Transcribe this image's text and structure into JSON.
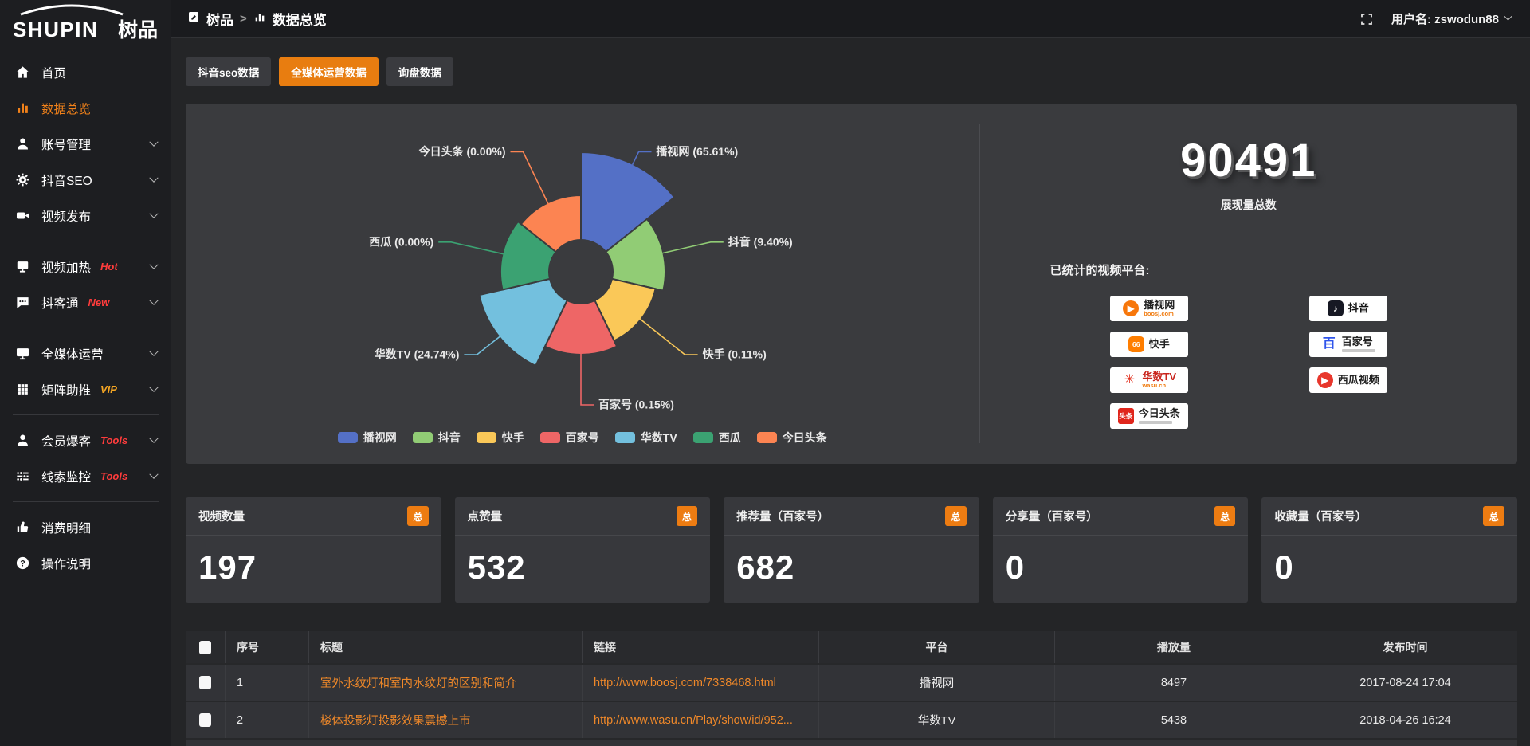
{
  "app": {
    "logo_text": "SHUPIN",
    "logo_cn": "树品"
  },
  "header": {
    "breadcrumb": [
      {
        "id": "shupin",
        "label": "树品",
        "icon": "app-icon"
      },
      {
        "id": "data-overview",
        "label": "数据总览",
        "icon": "bar-chart-icon"
      }
    ],
    "separator": ">",
    "username_label": "用户名: zswodun88"
  },
  "sidebar": {
    "items": [
      {
        "id": "home",
        "label": "首页",
        "icon": "home-icon"
      },
      {
        "id": "data-overview",
        "label": "数据总览",
        "icon": "bar-chart-icon",
        "active": true
      },
      {
        "id": "account-management",
        "label": "账号管理",
        "icon": "user-icon",
        "chevron": true
      },
      {
        "id": "douyin-seo",
        "label": "抖音SEO",
        "icon": "gear-icon",
        "chevron": true
      },
      {
        "id": "video-publish",
        "label": "视频发布",
        "icon": "video-icon",
        "chevron": true
      },
      {
        "divider": true
      },
      {
        "id": "video-heat",
        "label": "视频加热",
        "icon": "screen-icon",
        "tag": "Hot",
        "tag_color": "#ff3c3c",
        "chevron": true
      },
      {
        "id": "douketong",
        "label": "抖客通",
        "icon": "chat-icon",
        "tag": "New",
        "tag_color": "#ff3c3c",
        "chevron": true
      },
      {
        "divider": true
      },
      {
        "id": "omni-media",
        "label": "全媒体运营",
        "icon": "monitor-icon",
        "chevron": true
      },
      {
        "id": "matrix-boost",
        "label": "矩阵助推",
        "icon": "grid-icon",
        "tag": "VIP",
        "tag_color": "#f5a623",
        "chevron": true
      },
      {
        "divider": true
      },
      {
        "id": "member-baoke",
        "label": "会员爆客",
        "icon": "user-icon",
        "tag": "Tools",
        "tag_color": "#ff3c3c",
        "chevron": true
      },
      {
        "id": "lead-monitor",
        "label": "线索监控",
        "icon": "sliders-icon",
        "tag": "Tools",
        "tag_color": "#ff3c3c",
        "chevron": true
      },
      {
        "divider": true
      },
      {
        "id": "spend-detail",
        "label": "消费明细",
        "icon": "thumb-icon"
      },
      {
        "id": "help",
        "label": "操作说明",
        "icon": "question-icon"
      }
    ]
  },
  "tabs": [
    {
      "label": "抖音seo数据",
      "active": false
    },
    {
      "label": "全媒体运营数据",
      "active": true
    },
    {
      "label": "询盘数据",
      "active": false
    }
  ],
  "chart_data": {
    "type": "pie",
    "variant": "nightingale-rose",
    "categories": [
      "播视网",
      "抖音",
      "快手",
      "百家号",
      "华数TV",
      "西瓜",
      "今日头条"
    ],
    "values_percent": [
      65.61,
      9.4,
      0.11,
      0.15,
      24.74,
      0.0,
      0.0
    ],
    "colors": [
      "#5470c6",
      "#91cc75",
      "#fac858",
      "#ee6666",
      "#73c0de",
      "#3ba272",
      "#fc8452"
    ],
    "label_format": "{name} ({percent}%)",
    "legend_position": "bottom",
    "inner_radius": 40,
    "display_radii": [
      150,
      106,
      96,
      104,
      131,
      101,
      96
    ]
  },
  "summary": {
    "total_value": "90491",
    "total_label": "展现量总数",
    "platforms_title": "已统计的视频平台:",
    "platform_columns": [
      [
        {
          "name": "播视网",
          "sub": "boosj.com",
          "icon": "boosj-icon",
          "glyph": "▶",
          "icon_bg": "#f7770b",
          "shape": "circle",
          "name_color": "#222"
        },
        {
          "name": "快手",
          "icon": "kuaishou-icon",
          "glyph": "66",
          "icon_bg": "#ff7e00",
          "shape": "rounded",
          "name_color": "#222"
        },
        {
          "name": "华数TV",
          "sub": "wasu.cn",
          "icon": "wasu-icon",
          "glyph": "✳",
          "icon_color": "#e02613",
          "name_color": "#c9241c"
        },
        {
          "name": "今日头条",
          "icon": "toutiao-icon",
          "glyph": "头条",
          "icon_bg": "#e0261c",
          "shape": "square",
          "name_color": "#222",
          "tagline": true
        }
      ],
      [
        {
          "name": "抖音",
          "icon": "douyin-icon",
          "glyph": "♪",
          "icon_bg": "#16182) ",
          "shape": "rounded",
          "name_color": "#111"
        },
        {
          "name": "百家号",
          "icon": "baijiahao-icon",
          "glyph": "百",
          "icon_color": "#2f54eb",
          "name_color": "#222",
          "tagline": true
        },
        {
          "name": "西瓜视频",
          "icon": "xigua-icon",
          "glyph": "▶",
          "icon_bg": "#e8372c",
          "shape": "circle",
          "name_color": "#222"
        }
      ]
    ]
  },
  "stats_cards": [
    {
      "label": "视频数量",
      "badge": "总",
      "value": "197"
    },
    {
      "label": "点赞量",
      "badge": "总",
      "value": "532"
    },
    {
      "label": "推荐量（百家号）",
      "badge": "总",
      "value": "682"
    },
    {
      "label": "分享量（百家号）",
      "badge": "总",
      "value": "0"
    },
    {
      "label": "收藏量（百家号）",
      "badge": "总",
      "value": "0"
    }
  ],
  "table": {
    "columns": [
      "序号",
      "标题",
      "链接",
      "平台",
      "播放量",
      "发布时间"
    ],
    "rows": [
      {
        "no": "1",
        "title": "室外水纹灯和室内水纹灯的区别和简介",
        "link": "http://www.boosj.com/7338468.html",
        "platform": "播视网",
        "views": "8497",
        "time": "2017-08-24 17:04"
      },
      {
        "no": "2",
        "title": "楼体投影灯投影效果震撼上市",
        "link": "http://www.wasu.cn/Play/show/id/952...",
        "platform": "华数TV",
        "views": "5438",
        "time": "2018-04-26 16:24"
      }
    ]
  }
}
